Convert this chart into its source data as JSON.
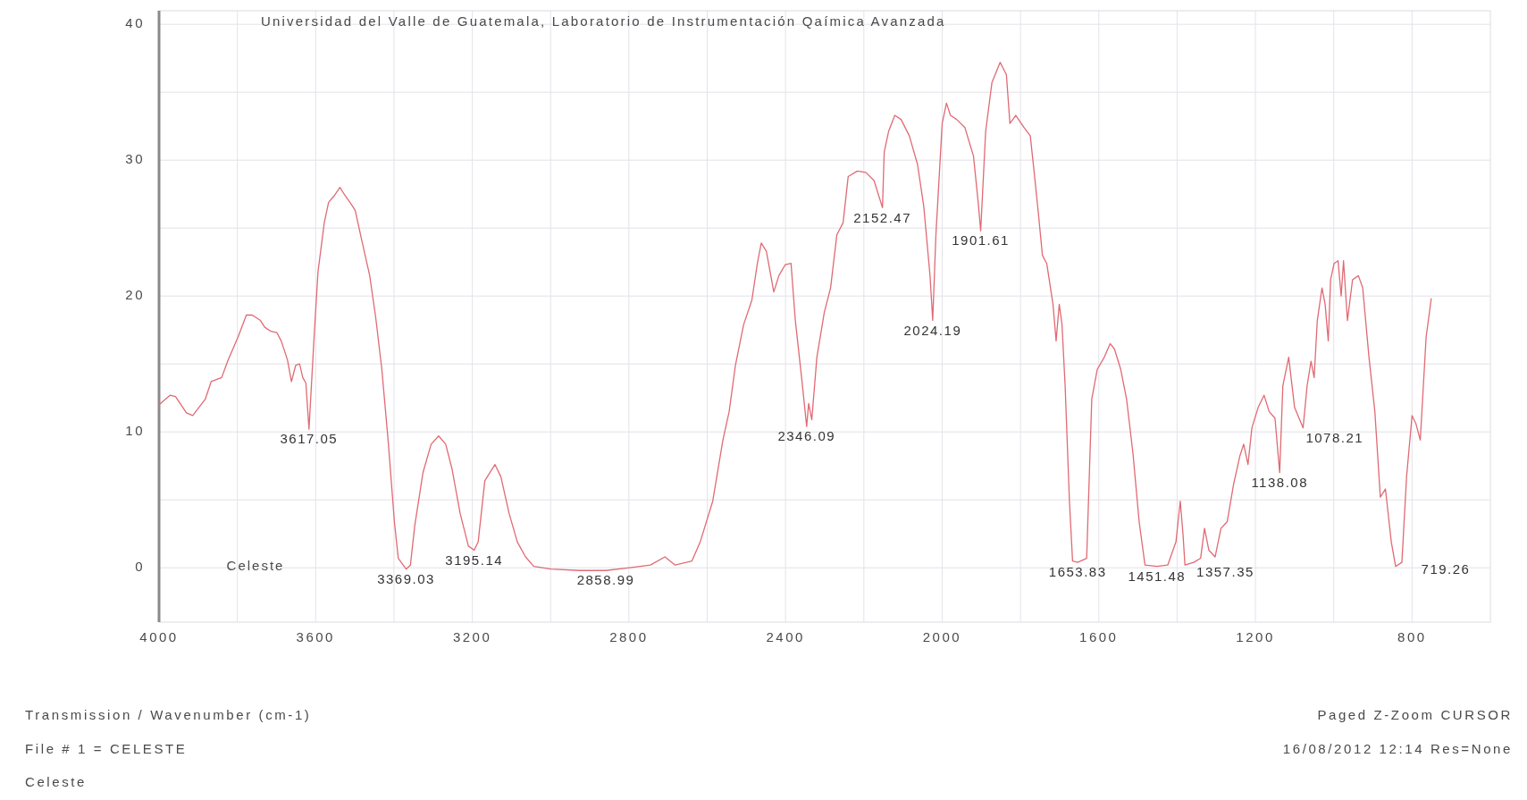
{
  "chart_data": {
    "type": "line",
    "title": "Universidad del Valle de Guatemala, Laboratorio de Instrumentación Qaímica Avanzada",
    "xlim": [
      4000,
      600
    ],
    "ylim": [
      -4,
      41
    ],
    "xticks": [
      4000,
      {
        "value": 3800,
        "label": null
      },
      3600,
      {
        "value": 3400,
        "label": null
      },
      3200,
      {
        "value": 3000,
        "label": null
      },
      2800,
      {
        "value": 2600,
        "label": null
      },
      2400,
      {
        "value": 2200,
        "label": null
      },
      2000,
      {
        "value": 1800,
        "label": null
      },
      1600,
      {
        "value": 1400,
        "label": null
      },
      1200,
      {
        "value": 1000,
        "label": null
      },
      800
    ],
    "yticks": [
      0,
      {
        "value": 5,
        "label": null
      },
      10,
      {
        "value": 15,
        "label": null
      },
      20,
      {
        "value": 25,
        "label": null
      },
      30,
      {
        "value": 35,
        "label": null
      },
      40
    ],
    "grid": true,
    "x": [
      4000,
      3972,
      3958,
      3930,
      3914,
      3882,
      3867,
      3840,
      3825,
      3798,
      3777,
      3762,
      3741,
      3730,
      3714,
      3699,
      3688,
      3672,
      3662,
      3651,
      3641,
      3633,
      3625,
      3617.05,
      3604,
      3594,
      3578,
      3567,
      3552,
      3538,
      3525,
      3510,
      3499,
      3483,
      3462,
      3447,
      3431,
      3415,
      3399,
      3389,
      3369.03,
      3358,
      3347,
      3326,
      3305,
      3286,
      3268,
      3252,
      3231,
      3210,
      3195.14,
      3185,
      3168,
      3142,
      3127,
      3106,
      3085,
      3064,
      3043,
      2999,
      2925,
      2858.99,
      2798,
      2745,
      2708,
      2682,
      2639,
      2618,
      2586,
      2560,
      2544,
      2528,
      2507,
      2486,
      2472,
      2462,
      2449,
      2430,
      2417,
      2401,
      2386,
      2375,
      2359,
      2346.09,
      2341,
      2333,
      2320,
      2301,
      2285,
      2269,
      2253,
      2240,
      2217,
      2195,
      2174,
      2152.47,
      2148,
      2137,
      2121,
      2105,
      2084,
      2063,
      2047,
      2031,
      2024.19,
      2016,
      2000,
      1989,
      1979,
      1963,
      1942,
      1920,
      1908,
      1901.61,
      1889,
      1873,
      1852,
      1836,
      1827,
      1812,
      1791,
      1775,
      1765,
      1754,
      1744,
      1733,
      1717,
      1709,
      1701,
      1694,
      1686,
      1675,
      1667,
      1653.83,
      1631,
      1618,
      1604,
      1586,
      1571,
      1560,
      1544,
      1529,
      1513,
      1497,
      1482,
      1451.48,
      1424,
      1403,
      1392,
      1385,
      1380,
      1357.35,
      1340,
      1330,
      1319,
      1303,
      1288,
      1272,
      1256,
      1240,
      1230,
      1219,
      1209,
      1193,
      1178,
      1165,
      1150,
      1138.08,
      1130,
      1115,
      1100,
      1078.21,
      1068,
      1058,
      1050,
      1042,
      1030,
      1022,
      1014,
      1008,
      999,
      989,
      981,
      975,
      965,
      952,
      937,
      926,
      910,
      895,
      881,
      868,
      853,
      842,
      826,
      814,
      800,
      790,
      779,
      764,
      751
    ],
    "series": [
      {
        "color": "#e06a74",
        "values": [
          12.0,
          12.7,
          12.6,
          11.4,
          11.2,
          12.4,
          13.7,
          14.0,
          15.2,
          17.0,
          18.6,
          18.6,
          18.2,
          17.7,
          17.4,
          17.3,
          16.7,
          15.3,
          13.7,
          14.9,
          15.0,
          14.0,
          13.6,
          10.2,
          17.0,
          21.8,
          25.4,
          26.9,
          27.4,
          28.0,
          27.4,
          26.8,
          26.3,
          24.2,
          21.5,
          18.5,
          14.6,
          9.4,
          3.4,
          0.7,
          -0.1,
          0.2,
          3.1,
          7.0,
          9.1,
          9.7,
          9.1,
          7.3,
          4.0,
          1.6,
          1.3,
          1.9,
          6.4,
          7.6,
          6.7,
          4.0,
          1.9,
          0.8,
          0.1,
          -0.1,
          -0.2,
          -0.2,
          0.0,
          0.2,
          0.8,
          0.2,
          0.5,
          1.9,
          4.9,
          9.4,
          11.5,
          14.9,
          17.9,
          19.7,
          22.4,
          23.9,
          23.3,
          20.3,
          21.5,
          22.3,
          22.4,
          18.2,
          14.0,
          10.4,
          12.1,
          10.9,
          15.5,
          18.8,
          20.6,
          24.5,
          25.4,
          28.8,
          29.2,
          29.1,
          28.5,
          26.5,
          30.6,
          32.1,
          33.3,
          33.0,
          31.8,
          29.7,
          26.6,
          21.5,
          18.2,
          24.5,
          32.7,
          34.2,
          33.3,
          33.0,
          32.4,
          30.3,
          26.9,
          24.8,
          32.1,
          35.7,
          37.2,
          36.3,
          32.7,
          33.3,
          32.4,
          31.8,
          29.1,
          26.0,
          23.0,
          22.4,
          19.4,
          16.7,
          19.4,
          17.9,
          13.4,
          4.9,
          0.5,
          0.4,
          0.7,
          12.4,
          14.6,
          15.5,
          16.5,
          16.1,
          14.6,
          12.4,
          8.5,
          3.4,
          0.2,
          0.1,
          0.2,
          1.9,
          4.9,
          2.5,
          0.2,
          0.4,
          0.7,
          2.9,
          1.3,
          0.8,
          2.9,
          3.4,
          6.1,
          8.2,
          9.1,
          7.6,
          10.3,
          11.8,
          12.7,
          11.5,
          11.0,
          7.0,
          13.4,
          15.5,
          11.8,
          10.3,
          13.4,
          15.2,
          14.0,
          18.2,
          20.6,
          19.4,
          16.7,
          21.2,
          22.4,
          22.6,
          20.0,
          22.6,
          18.2,
          21.2,
          21.5,
          20.6,
          15.5,
          11.5,
          5.2,
          5.8,
          1.9,
          0.1,
          0.4,
          6.7,
          11.2,
          10.6,
          9.4,
          17.0,
          19.8
        ]
      }
    ],
    "annotations": [
      "Celeste",
      "Transmission / Wavenumber (cm-1)",
      "File # 1 = CELESTE",
      "Celeste",
      "Paged Z-Zoom CURSOR",
      "16/08/2012 12:14 Res=None",
      "719.26",
      {
        "text": "3617.05",
        "x": 3617.05,
        "y": 10.2
      },
      {
        "text": "3369.03",
        "x": 3369.03,
        "y": -0.1
      },
      {
        "text": "3195.14",
        "x": 3195.14,
        "y": 1.3
      },
      {
        "text": "2858.99",
        "x": 2858.99,
        "y": -0.2
      },
      {
        "text": "2346.09",
        "x": 2346.09,
        "y": 10.4
      },
      {
        "text": "2152.47",
        "x": 2152.47,
        "y": 26.5
      },
      {
        "text": "2024.19",
        "x": 2024.19,
        "y": 18.2
      },
      {
        "text": "1901.61",
        "x": 1901.61,
        "y": 24.8
      },
      {
        "text": "1653.83",
        "x": 1653.83,
        "y": 0.4
      },
      {
        "text": "1451.48",
        "x": 1451.48,
        "y": 0.1
      },
      {
        "text": "1357.35",
        "x": 1357.35,
        "y": 0.4
      },
      {
        "text": "1138.08",
        "x": 1138.08,
        "y": 7.0
      },
      {
        "text": "1078.21",
        "x": 1078.21,
        "y": 10.3
      }
    ]
  }
}
